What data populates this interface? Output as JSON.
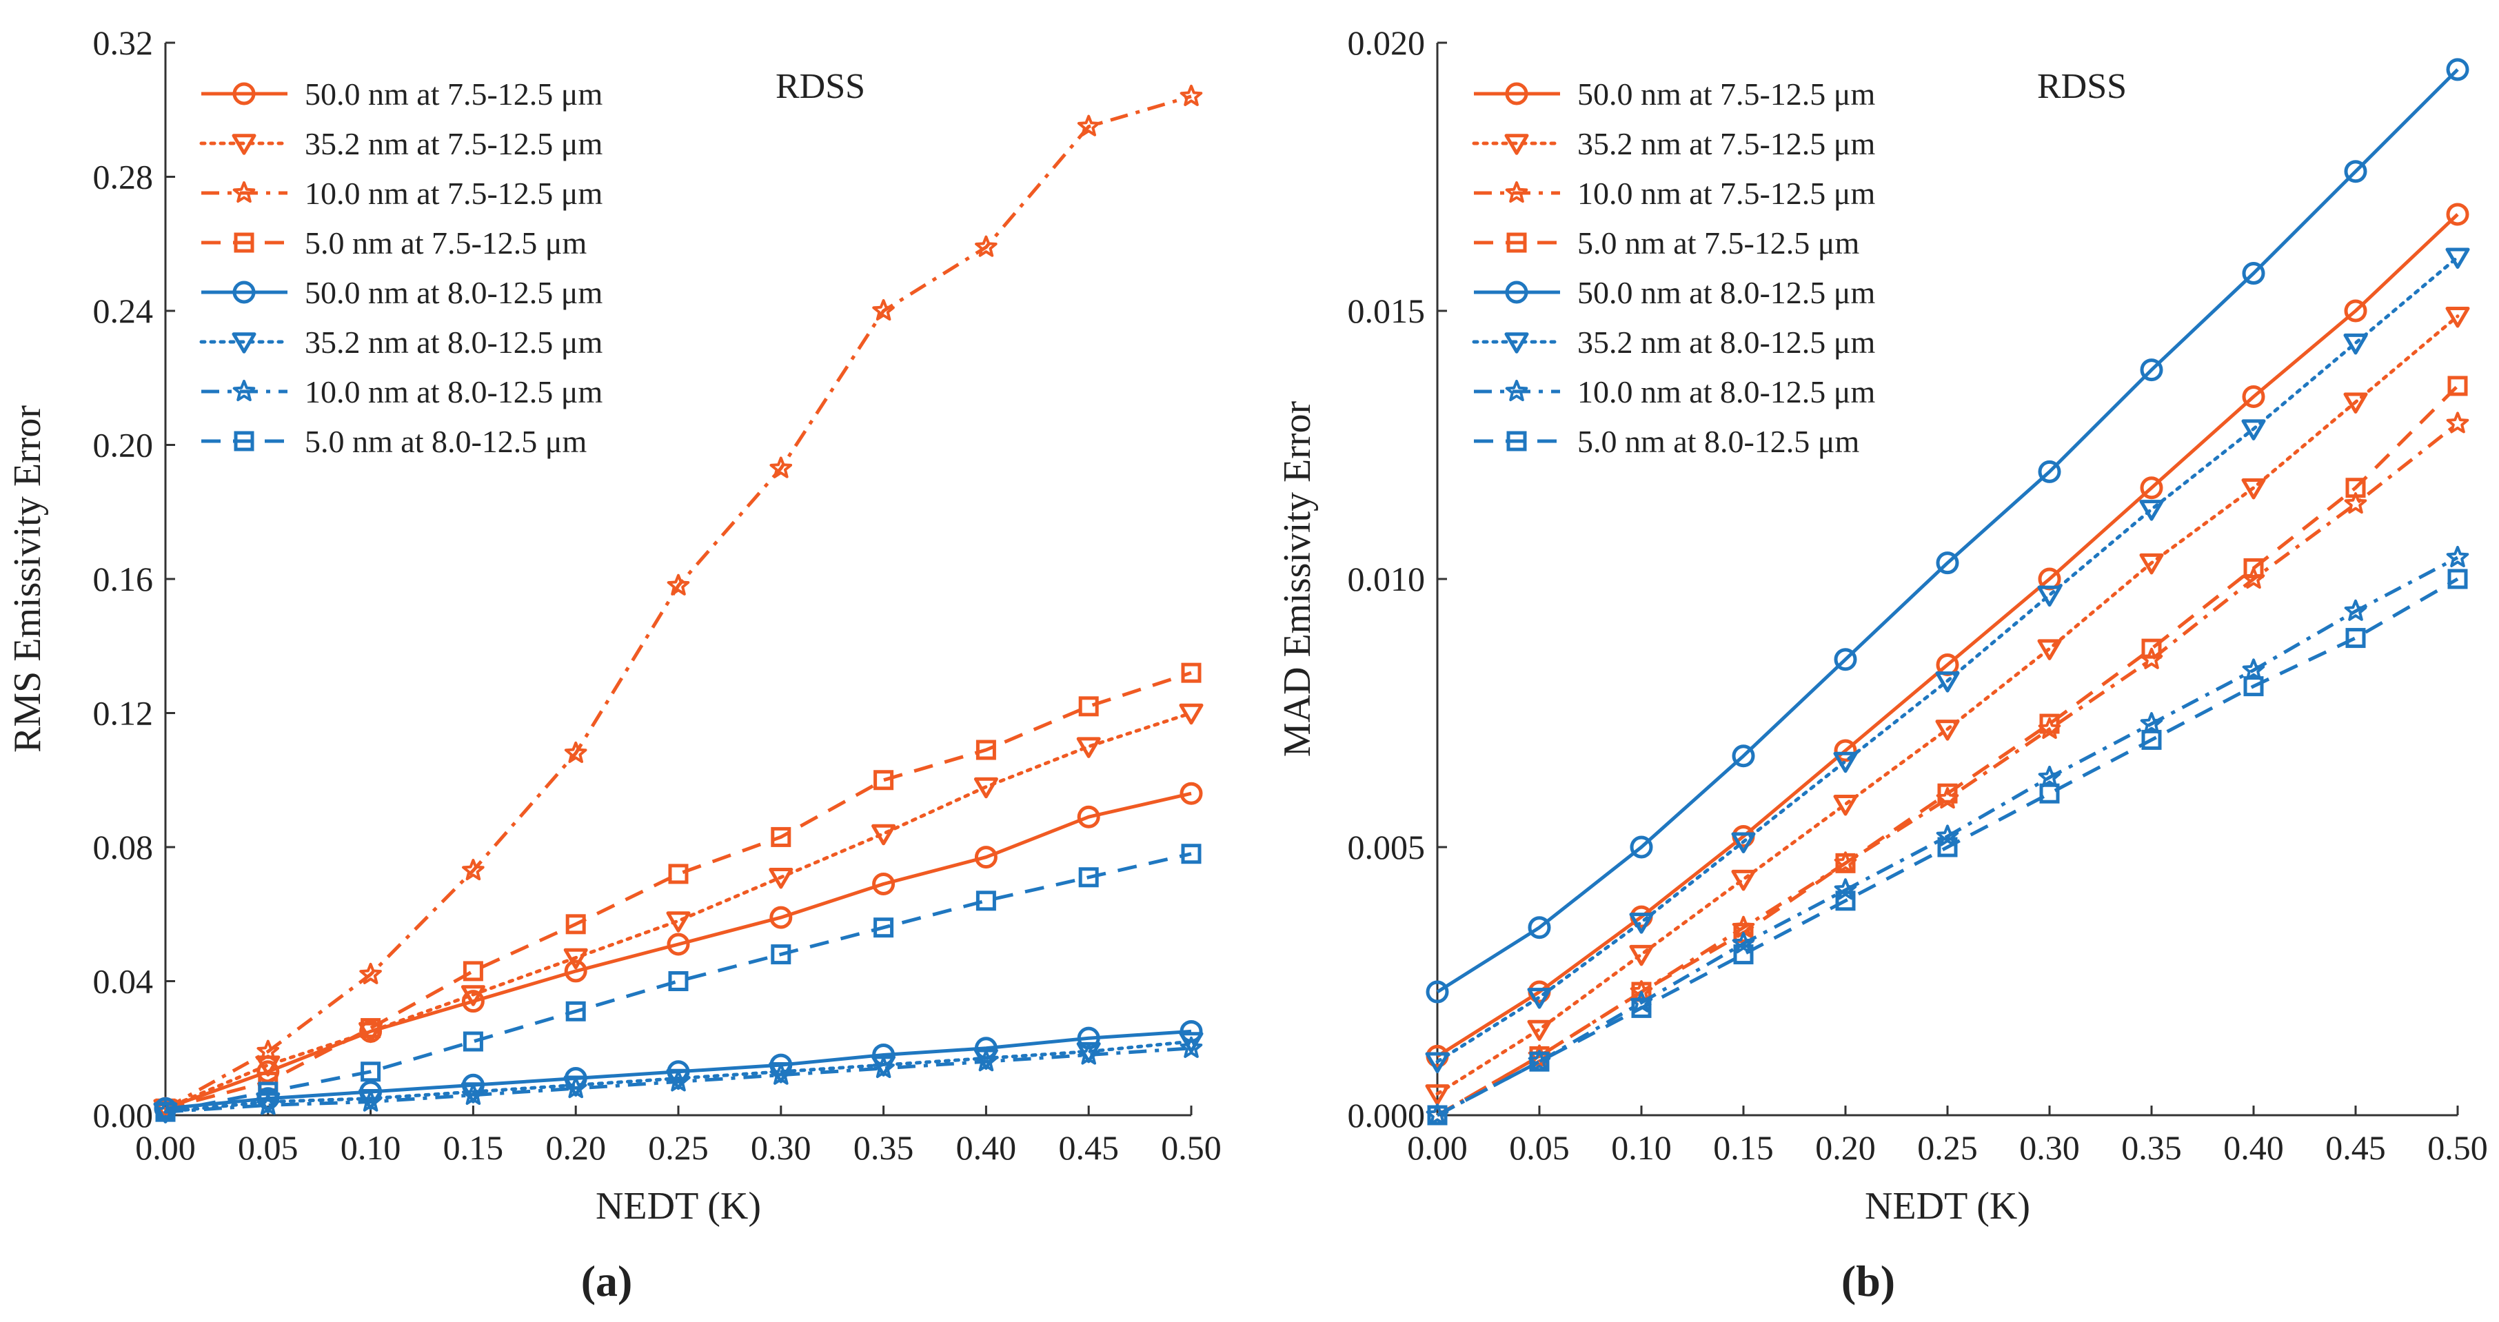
{
  "chart_data": [
    {
      "type": "line",
      "panel_label": "(a)",
      "annotation": "RDSS",
      "xlabel": "NEDT (K)",
      "ylabel": "RMS Emissivity Error",
      "xlim": [
        0,
        0.5
      ],
      "ylim": [
        0,
        0.32
      ],
      "x": [
        0.0,
        0.05,
        0.1,
        0.15,
        0.2,
        0.25,
        0.3,
        0.35,
        0.4,
        0.45,
        0.5
      ],
      "x_tick_labels": [
        "0.00",
        "0.05",
        "0.10",
        "0.15",
        "0.20",
        "0.25",
        "0.30",
        "0.35",
        "0.40",
        "0.45",
        "0.50"
      ],
      "y_ticks": [
        0,
        0.04,
        0.08,
        0.12,
        0.16,
        0.2,
        0.24,
        0.28,
        0.32
      ],
      "y_tick_labels": [
        "0.00",
        "0.04",
        "0.08",
        "0.12",
        "0.16",
        "0.20",
        "0.24",
        "0.28",
        "0.32"
      ],
      "legend_position": "top-left",
      "series": [
        {
          "name": "50.0 nm at 7.5-12.5 μm",
          "color": "#F05A22",
          "dash": "solid",
          "marker": "circle",
          "values": [
            0.002,
            0.013,
            0.025,
            0.034,
            0.043,
            0.051,
            0.059,
            0.069,
            0.077,
            0.089,
            0.096
          ]
        },
        {
          "name": "35.2 nm at 7.5-12.5 μm",
          "color": "#F05A22",
          "dash": "dotted",
          "marker": "triangle-down",
          "values": [
            0.002,
            0.015,
            0.025,
            0.036,
            0.047,
            0.058,
            0.071,
            0.084,
            0.098,
            0.11,
            0.12
          ]
        },
        {
          "name": "10.0 nm at 7.5-12.5 μm",
          "color": "#F05A22",
          "dash": "dashdot",
          "marker": "star",
          "values": [
            0.002,
            0.019,
            0.042,
            0.073,
            0.108,
            0.158,
            0.193,
            0.24,
            0.259,
            0.295,
            0.304
          ]
        },
        {
          "name": "5.0 nm at 7.5-12.5 μm",
          "color": "#F05A22",
          "dash": "dashed",
          "marker": "square",
          "values": [
            0.002,
            0.01,
            0.026,
            0.043,
            0.057,
            0.072,
            0.083,
            0.1,
            0.109,
            0.122,
            0.132
          ]
        },
        {
          "name": "50.0 nm at 8.0-12.5 μm",
          "color": "#1F77C0",
          "dash": "solid",
          "marker": "circle",
          "values": [
            0.002,
            0.005,
            0.007,
            0.009,
            0.011,
            0.013,
            0.015,
            0.018,
            0.02,
            0.023,
            0.025
          ]
        },
        {
          "name": "35.2 nm at 8.0-12.5 μm",
          "color": "#1F77C0",
          "dash": "dotted",
          "marker": "triangle-down",
          "values": [
            0.001,
            0.004,
            0.005,
            0.007,
            0.009,
            0.011,
            0.013,
            0.015,
            0.017,
            0.019,
            0.022
          ]
        },
        {
          "name": "10.0 nm at 8.0-12.5 μm",
          "color": "#1F77C0",
          "dash": "dashdot",
          "marker": "star",
          "values": [
            0.001,
            0.003,
            0.004,
            0.006,
            0.008,
            0.01,
            0.012,
            0.014,
            0.016,
            0.018,
            0.02
          ]
        },
        {
          "name": "5.0 nm at 8.0-12.5 μm",
          "color": "#1F77C0",
          "dash": "dashed",
          "marker": "square",
          "values": [
            0.001,
            0.007,
            0.013,
            0.022,
            0.031,
            0.04,
            0.048,
            0.056,
            0.064,
            0.071,
            0.078
          ]
        }
      ]
    },
    {
      "type": "line",
      "panel_label": "(b)",
      "annotation": "RDSS",
      "xlabel": "NEDT (K)",
      "ylabel": "MAD Emissivity Error",
      "xlim": [
        0,
        0.5
      ],
      "ylim": [
        0,
        0.02
      ],
      "x": [
        0.0,
        0.05,
        0.1,
        0.15,
        0.2,
        0.25,
        0.3,
        0.35,
        0.4,
        0.45,
        0.5
      ],
      "x_tick_labels": [
        "0.00",
        "0.05",
        "0.10",
        "0.15",
        "0.20",
        "0.25",
        "0.30",
        "0.35",
        "0.40",
        "0.45",
        "0.50"
      ],
      "y_ticks": [
        0,
        0.005,
        0.01,
        0.015,
        0.02
      ],
      "y_tick_labels": [
        "0.000",
        "0.005",
        "0.010",
        "0.015",
        "0.020"
      ],
      "legend_position": "top-left",
      "series": [
        {
          "name": "50.0 nm at 7.5-12.5 μm",
          "color": "#F05A22",
          "dash": "solid",
          "marker": "circle",
          "values": [
            0.0011,
            0.0023,
            0.0037,
            0.0052,
            0.0068,
            0.0084,
            0.01,
            0.0117,
            0.0134,
            0.015,
            0.0168
          ]
        },
        {
          "name": "35.2 nm at 7.5-12.5 μm",
          "color": "#F05A22",
          "dash": "dotted",
          "marker": "triangle-down",
          "values": [
            0.0004,
            0.0016,
            0.003,
            0.0044,
            0.0058,
            0.0072,
            0.0087,
            0.0103,
            0.0117,
            0.0133,
            0.0149
          ]
        },
        {
          "name": "10.0 nm at 7.5-12.5 μm",
          "color": "#F05A22",
          "dash": "dashdot",
          "marker": "star",
          "values": [
            0.0,
            0.0011,
            0.0023,
            0.0035,
            0.0047,
            0.0059,
            0.0072,
            0.0085,
            0.01,
            0.0114,
            0.0129
          ]
        },
        {
          "name": "5.0 nm at 7.5-12.5 μm",
          "color": "#F05A22",
          "dash": "dashed",
          "marker": "square",
          "values": [
            0.0,
            0.0011,
            0.0023,
            0.0034,
            0.0047,
            0.006,
            0.0073,
            0.0087,
            0.0102,
            0.0117,
            0.0136
          ]
        },
        {
          "name": "50.0 nm at 8.0-12.5 μm",
          "color": "#1F77C0",
          "dash": "solid",
          "marker": "circle",
          "values": [
            0.0023,
            0.0035,
            0.005,
            0.0067,
            0.0085,
            0.0103,
            0.012,
            0.0139,
            0.0157,
            0.0176,
            0.0195
          ]
        },
        {
          "name": "35.2 nm at 8.0-12.5 μm",
          "color": "#1F77C0",
          "dash": "dotted",
          "marker": "triangle-down",
          "values": [
            0.001,
            0.0022,
            0.0036,
            0.0051,
            0.0066,
            0.0081,
            0.0097,
            0.0113,
            0.0128,
            0.0144,
            0.016
          ]
        },
        {
          "name": "10.0 nm at 8.0-12.5 μm",
          "color": "#1F77C0",
          "dash": "dashdot",
          "marker": "star",
          "values": [
            0.0,
            0.001,
            0.0021,
            0.0032,
            0.0042,
            0.0052,
            0.0063,
            0.0073,
            0.0083,
            0.0094,
            0.0104
          ]
        },
        {
          "name": "5.0 nm at 8.0-12.5 μm",
          "color": "#1F77C0",
          "dash": "dashed",
          "marker": "square",
          "values": [
            0.0,
            0.001,
            0.002,
            0.003,
            0.004,
            0.005,
            0.006,
            0.007,
            0.008,
            0.0089,
            0.01
          ]
        }
      ]
    }
  ]
}
